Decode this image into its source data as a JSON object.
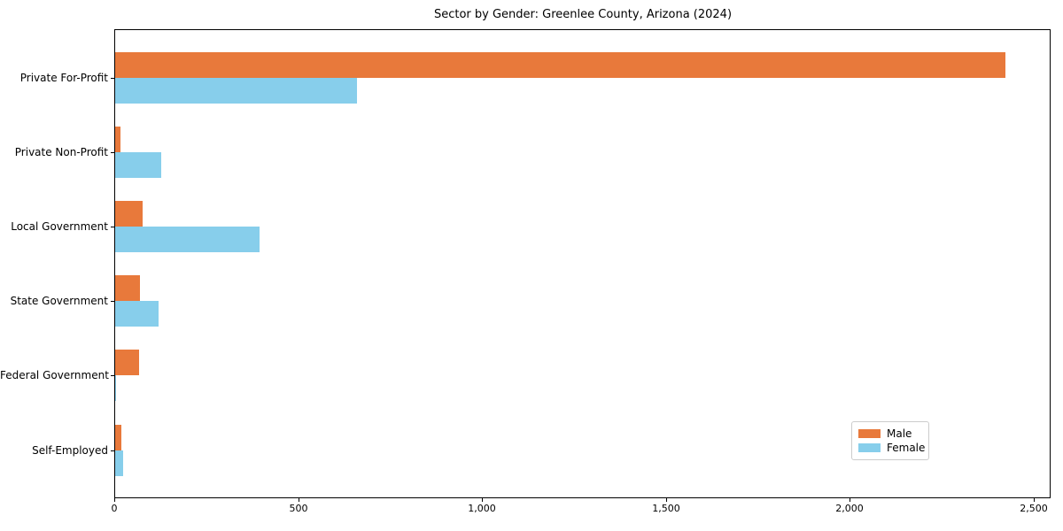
{
  "chart_data": {
    "type": "bar",
    "orientation": "horizontal",
    "title": "Sector by Gender: Greenlee County, Arizona (2024)",
    "categories": [
      "Private For-Profit",
      "Private Non-Profit",
      "Local Government",
      "State Government",
      "Federal Government",
      "Self-Employed"
    ],
    "series": [
      {
        "name": "Male",
        "color": "#e8793b",
        "values": [
          2420,
          15,
          74,
          67,
          66,
          18
        ]
      },
      {
        "name": "Female",
        "color": "#87ceeb",
        "values": [
          657,
          125,
          393,
          118,
          3,
          22
        ]
      }
    ],
    "xlabel": "",
    "ylabel": "",
    "xlim": [
      0,
      2500
    ],
    "xticks": [
      0,
      500,
      1000,
      1500,
      2000,
      2500
    ],
    "xtick_labels": [
      "0",
      "500",
      "1,000",
      "1,500",
      "2,000",
      "2,500"
    ],
    "grid": false,
    "legend": {
      "position": "lower right"
    }
  }
}
